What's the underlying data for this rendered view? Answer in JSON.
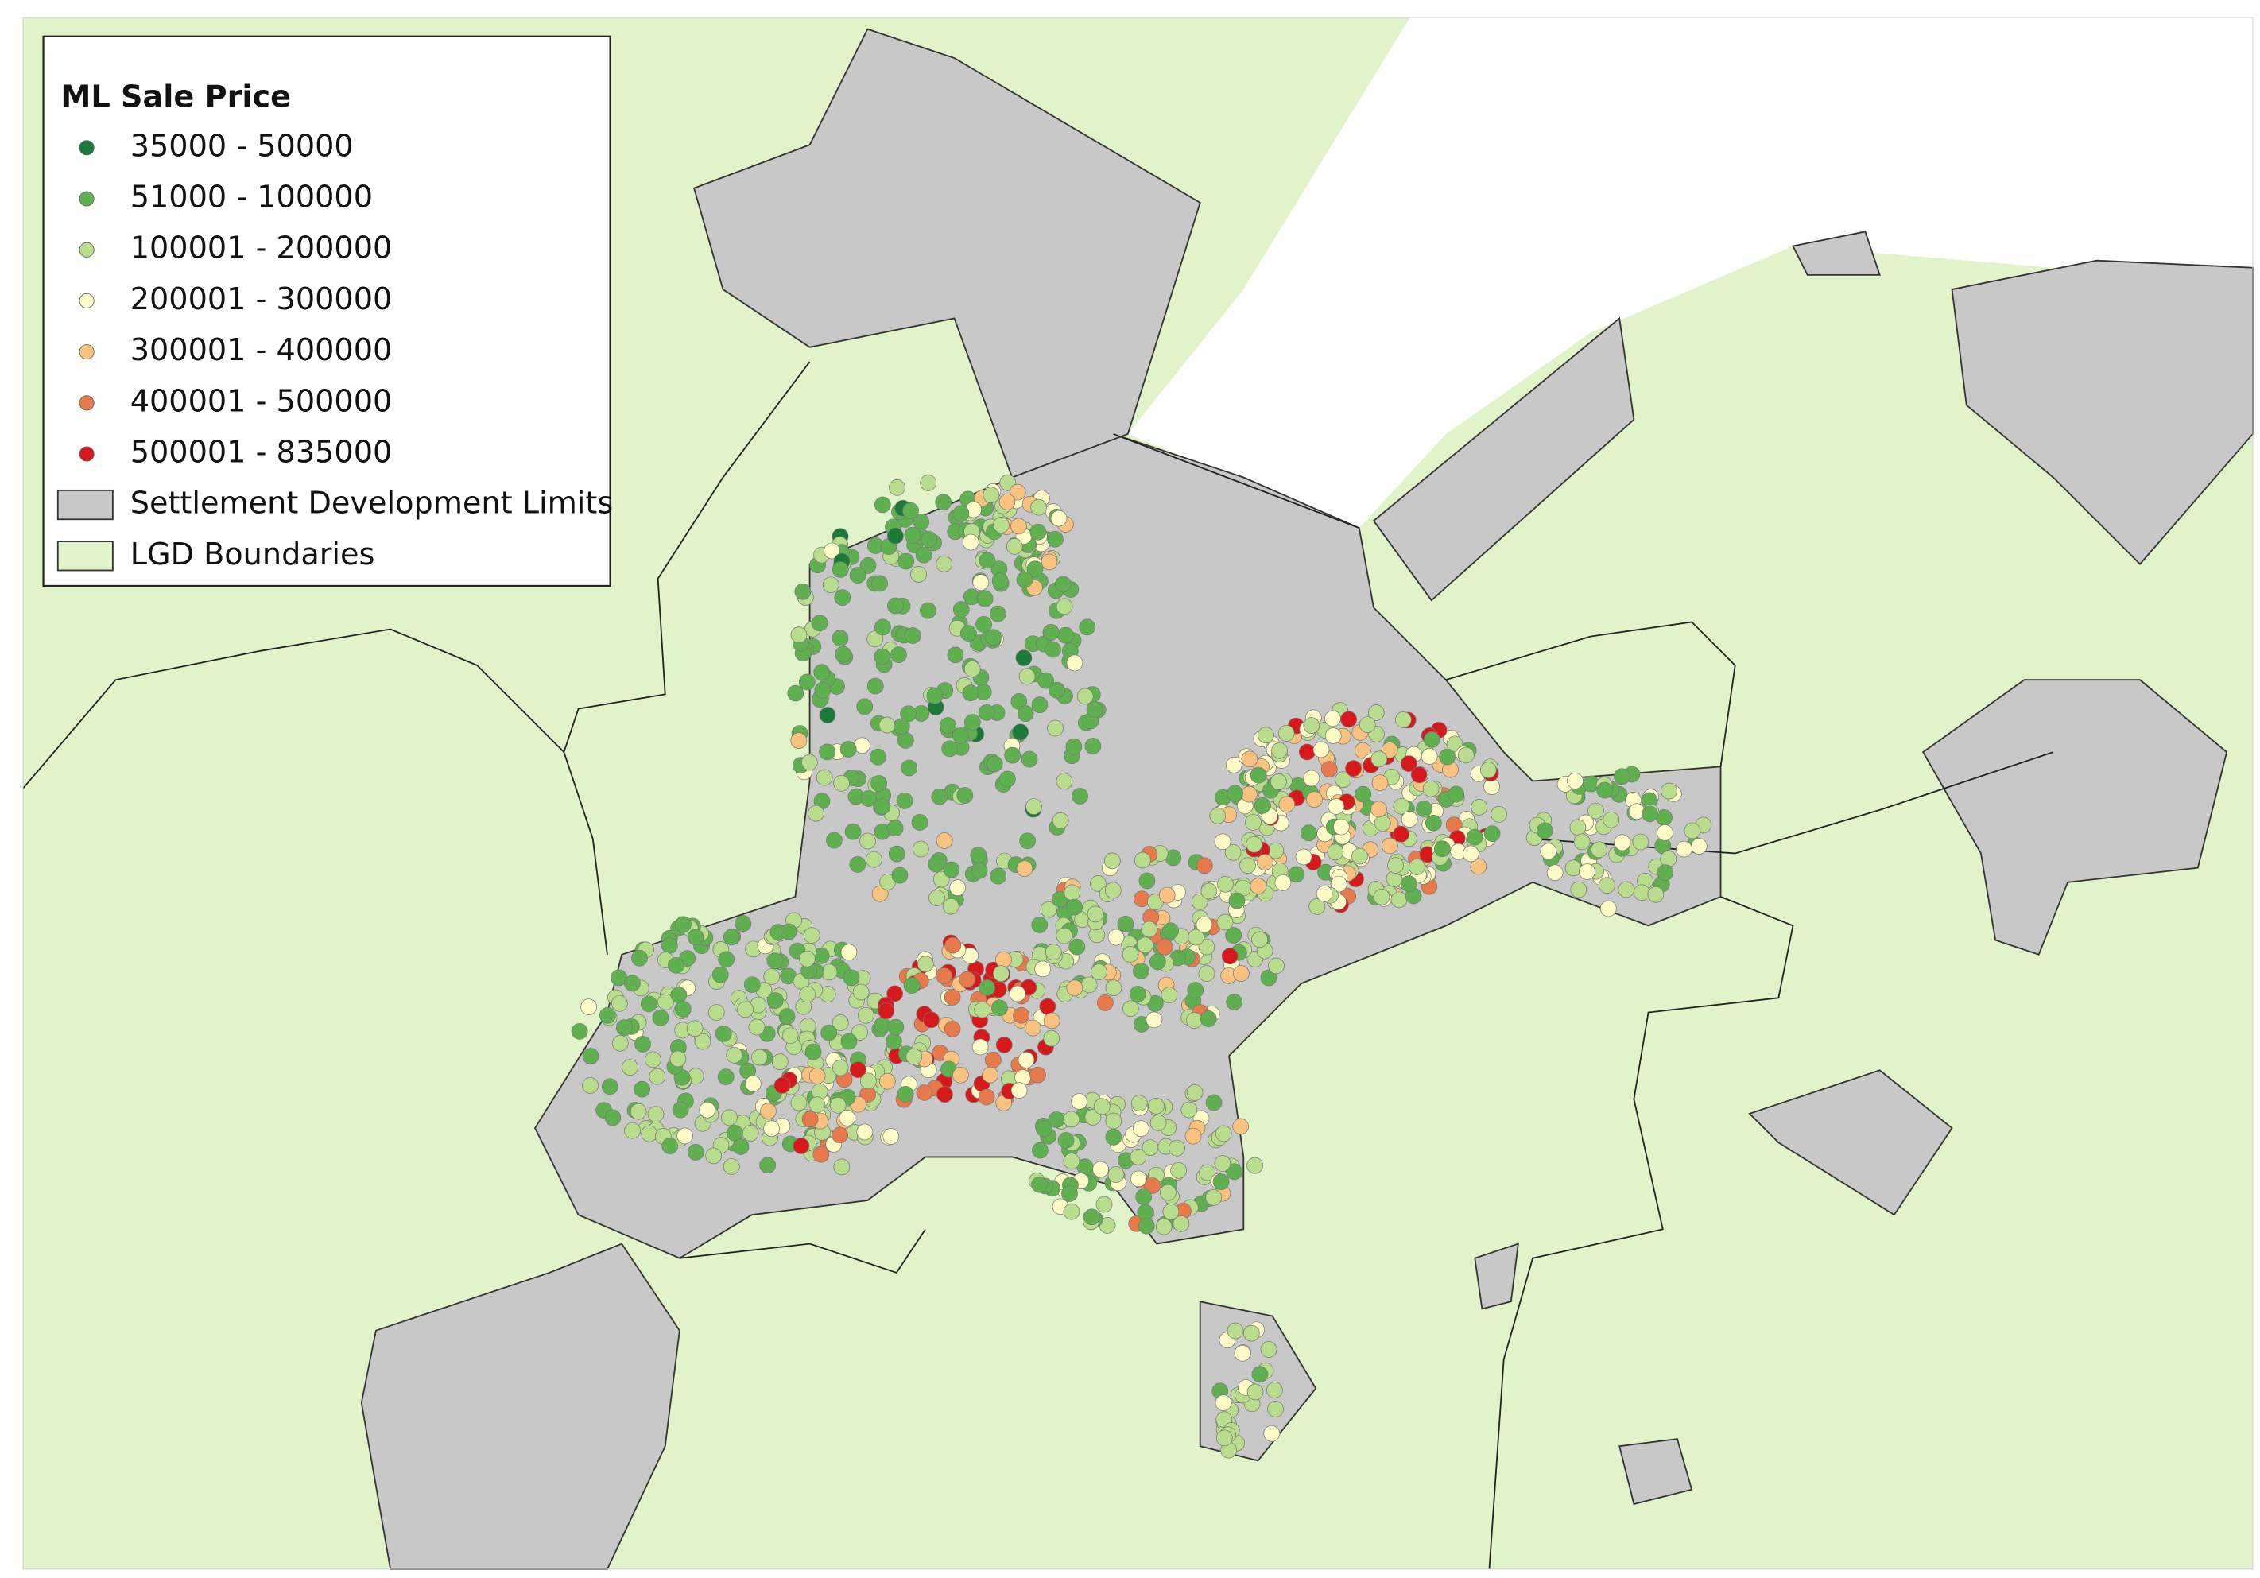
{
  "legend": {
    "title": "ML Sale Price",
    "items": [
      {
        "label": "35000 - 50000",
        "color": "#1a7a38"
      },
      {
        "label": "51000 - 100000",
        "color": "#5fb14f"
      },
      {
        "label": "100001 - 200000",
        "color": "#b8dd8c"
      },
      {
        "label": "200001 - 300000",
        "color": "#fffbc6"
      },
      {
        "label": "300001 - 400000",
        "color": "#f9c27f"
      },
      {
        "label": "400001 - 500000",
        "color": "#e8794a"
      },
      {
        "label": "500001 - 835000",
        "color": "#d7191c"
      }
    ],
    "layers": [
      {
        "label": "Settlement Development Limits",
        "color": "#c8c8c8"
      },
      {
        "label": "LGD Boundaries",
        "color": "#e1f3c8"
      }
    ]
  }
}
